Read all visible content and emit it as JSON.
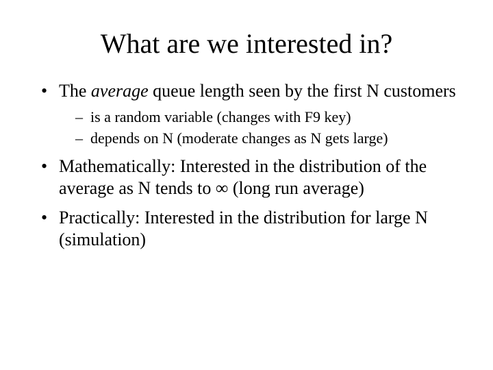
{
  "title": "What are we interested in?",
  "bullets": {
    "b1_pre": "The ",
    "b1_em": "average",
    "b1_post": " queue length seen by the first N customers",
    "b1_sub1": "is a random variable (changes with F9 key)",
    "b1_sub2": "depends on N (moderate changes as N gets large)",
    "b2": "Mathematically: Interested in the distribution of the average as N tends to ∞ (long run average)",
    "b3": "Practically: Interested in the distribution for large N (simulation)"
  },
  "colors": {
    "background": "#ffffff",
    "text": "#000000"
  },
  "typography": {
    "font_family": "Times New Roman",
    "title_fontsize_pt": 40,
    "body_fontsize_pt": 26,
    "sub_fontsize_pt": 22
  }
}
